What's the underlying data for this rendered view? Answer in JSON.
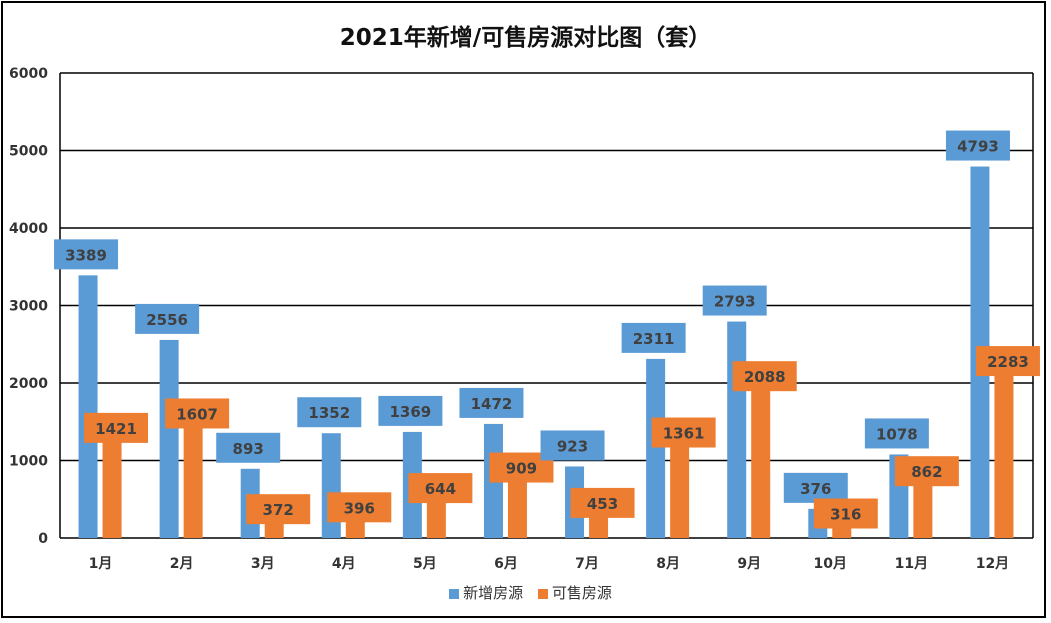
{
  "chart_data": {
    "type": "bar",
    "title": "2021年新增/可售房源对比图（套）",
    "categories": [
      "1月",
      "2月",
      "3月",
      "4月",
      "5月",
      "6月",
      "7月",
      "8月",
      "9月",
      "10月",
      "11月",
      "12月"
    ],
    "series": [
      {
        "name": "新增房源",
        "color": "#5B9BD5",
        "values": [
          3389,
          2556,
          893,
          1352,
          1369,
          1472,
          923,
          2311,
          2793,
          376,
          1078,
          4793
        ]
      },
      {
        "name": "可售房源",
        "color": "#ED7D31",
        "values": [
          1421,
          1607,
          372,
          396,
          644,
          909,
          453,
          1361,
          2088,
          316,
          862,
          2283
        ]
      }
    ],
    "ylim": [
      0,
      6000
    ],
    "yticks": [
      0,
      1000,
      2000,
      3000,
      4000,
      5000,
      6000
    ],
    "grid": true,
    "legend": "bottom"
  }
}
